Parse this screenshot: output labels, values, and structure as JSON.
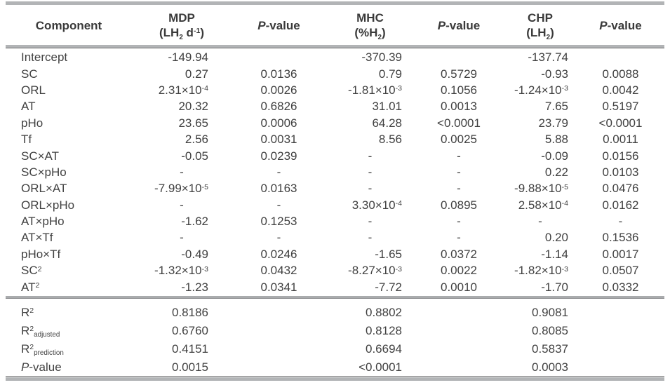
{
  "colors": {
    "text": "#414141",
    "rule_gray": "#b2b4b6",
    "rule_dark": "#6e6e70",
    "background": "#ffffff"
  },
  "table": {
    "header": {
      "columns": [
        {
          "key": "component",
          "line1": "Component",
          "line2": ""
        },
        {
          "key": "mdp-coefficient",
          "line1": "MDP",
          "line2": "(LH_{2} d^{-1})"
        },
        {
          "key": "mdp-p-value",
          "line1": "{P}-value",
          "line2": ""
        },
        {
          "key": "mhc-coefficient",
          "line1": "MHC",
          "line2": "(%H_{2})"
        },
        {
          "key": "mhc-p-value",
          "line1": "{P}-value",
          "line2": ""
        },
        {
          "key": "chp-coefficient",
          "line1": "CHP",
          "line2": "(LH_{2})"
        },
        {
          "key": "chp-p-value",
          "line1": "{P}-value",
          "line2": ""
        }
      ]
    },
    "coefficient_rows": [
      [
        "Intercept",
        "-149.94",
        "",
        "-370.39",
        "",
        "-137.74",
        ""
      ],
      [
        "SC",
        "0.27",
        "0.0136",
        "0.79",
        "0.5729",
        "-0.93",
        "0.0088"
      ],
      [
        "ORL",
        "2.31×10^{-4}",
        "0.0026",
        "-1.81×10^{-3}",
        "0.1056",
        "-1.24×10^{-3}",
        "0.0042"
      ],
      [
        "AT",
        "20.32",
        "0.6826",
        "31.01",
        "0.0013",
        "7.65",
        "0.5197"
      ],
      [
        "pHo",
        "23.65",
        "0.0006",
        "64.28",
        "<0.0001",
        "23.79",
        "<0.0001"
      ],
      [
        "Tf",
        "2.56",
        "0.0031",
        "8.56",
        "0.0025",
        "5.88",
        "0.0011"
      ],
      [
        "SC×AT",
        "-0.05",
        "0.0239",
        "-",
        "-",
        "-0.09",
        "0.0156"
      ],
      [
        "SC×pHo",
        "-",
        "-",
        "-",
        "-",
        "0.22",
        "0.0103"
      ],
      [
        "ORL×AT",
        "-7.99×10^{-5}",
        "0.0163",
        "-",
        "-",
        "-9.88×10^{-5}",
        "0.0476"
      ],
      [
        "ORL×pHo",
        "-",
        "-",
        "3.30×10^{-4}",
        "0.0895",
        "2.58×10^{-4}",
        "0.0162"
      ],
      [
        "AT×pHo",
        "-1.62",
        "0.1253",
        "-",
        "-",
        "-",
        "-"
      ],
      [
        "AT×Tf",
        "-",
        "-",
        "-",
        "-",
        "0.20",
        "0.1536"
      ],
      [
        "pHo×Tf",
        "-0.49",
        "0.0246",
        "-1.65",
        "0.0372",
        "-1.14",
        "0.0017"
      ],
      [
        "SC^{2}",
        "-1.32×10^{-3}",
        "0.0432",
        "-8.27×10^{-3}",
        "0.0022",
        "-1.82×10^{-3}",
        "0.0507"
      ],
      [
        "AT^{2}",
        "-1.23",
        "0.0341",
        "-7.72",
        "0.0010",
        "-1.70",
        "0.0332"
      ]
    ],
    "stat_rows": [
      [
        "R^{2}",
        "0.8186",
        "",
        "0.8802",
        "",
        "0.9081",
        ""
      ],
      [
        "R^{2}_{adjusted}",
        "0.6760",
        "",
        "0.8128",
        "",
        "0.8085",
        ""
      ],
      [
        "R^{2}_{prediction}",
        "0.4151",
        "",
        "0.6694",
        "",
        "0.5837",
        ""
      ],
      [
        "{P}-value",
        "0.0015",
        "",
        "<0.0001",
        "",
        "0.0003",
        ""
      ]
    ]
  }
}
